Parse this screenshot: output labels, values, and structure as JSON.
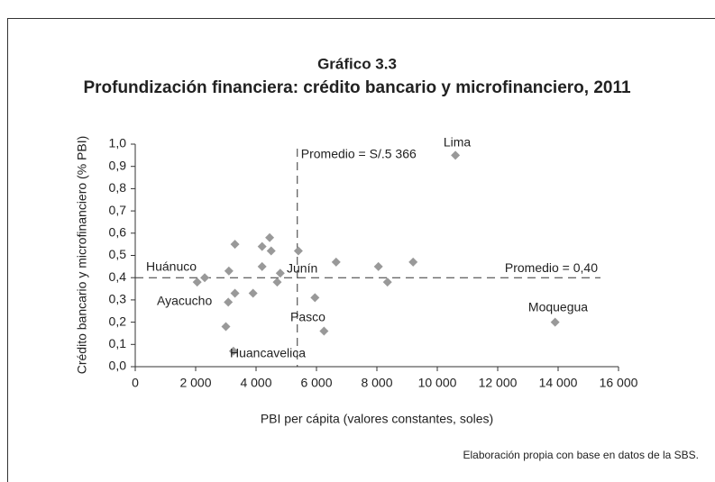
{
  "chart_data": {
    "type": "scatter",
    "title": "Gráfico 3.3",
    "subtitle": "Profundización financiera: crédito bancario y microfinanciero, 2011",
    "x_label": "PBI per cápita (valores constantes, soles)",
    "y_label": "Crédito bancario y microfinanciero (% PBI)",
    "source": "Elaboración propia con base en datos de la SBS.",
    "color": "#999999",
    "x": [
      2050,
      2300,
      3100,
      3300,
      3080,
      3300,
      3000,
      3250,
      3900,
      4200,
      4200,
      4450,
      4500,
      4700,
      4800,
      5400,
      5950,
      6250,
      6650,
      8050,
      8350,
      9200,
      10600,
      13900
    ],
    "values": [
      0.38,
      0.4,
      0.43,
      0.55,
      0.29,
      0.33,
      0.18,
      0.07,
      0.33,
      0.54,
      0.45,
      0.58,
      0.52,
      0.38,
      0.42,
      0.52,
      0.31,
      0.16,
      0.47,
      0.45,
      0.38,
      0.47,
      0.95,
      0.2
    ],
    "xlim": [
      0,
      16000
    ],
    "ylim": [
      0,
      1
    ],
    "xticks": [
      0,
      {
        "value": 2000,
        "label": "2 000"
      },
      {
        "value": 4000,
        "label": "4 000"
      },
      {
        "value": 6000,
        "label": "6 000"
      },
      {
        "value": 8000,
        "label": "8 000"
      },
      {
        "value": 10000,
        "label": "10 000"
      },
      {
        "value": 12000,
        "label": "12 000"
      },
      {
        "value": 14000,
        "label": "14 000"
      },
      {
        "value": 16000,
        "label": "16 000"
      }
    ],
    "yticks": [
      {
        "value": 0,
        "label": "0,0"
      },
      {
        "value": 0.1,
        "label": "0,1"
      },
      {
        "value": 0.2,
        "label": "0,2"
      },
      {
        "value": 0.3,
        "label": "0,3"
      },
      {
        "value": 0.4,
        "label": "0,4"
      },
      {
        "value": 0.5,
        "label": "0,5"
      },
      {
        "value": 0.6,
        "label": "0,6"
      },
      {
        "value": 0.7,
        "label": "0,7"
      },
      {
        "value": 0.8,
        "label": "0,8"
      },
      {
        "value": 0.9,
        "label": "0,9"
      },
      {
        "value": 1,
        "label": "1,0"
      }
    ],
    "reference_lines": [
      {
        "axis": "x",
        "value": 5366,
        "label": "Promedio = S/.5 366"
      },
      {
        "axis": "y",
        "value": 0.4,
        "label": "Promedio = 0,40"
      }
    ],
    "annotations": [
      "Huánuco",
      "Ayacucho",
      "Junín",
      "Pasco",
      "Huancavelica",
      "Lima",
      "Moquegua"
    ]
  }
}
